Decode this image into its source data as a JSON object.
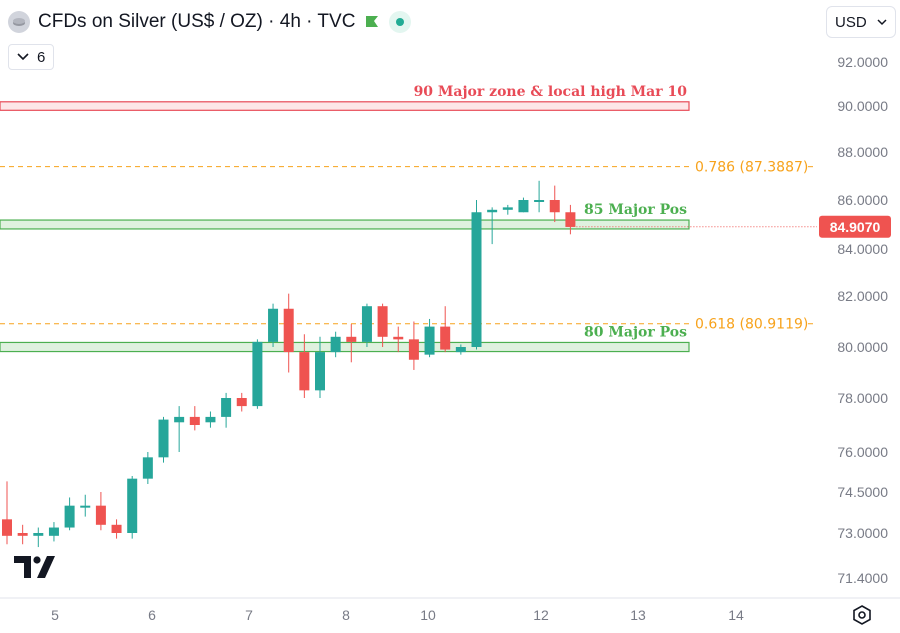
{
  "header": {
    "title": "CFDs on Silver (US$ / OZ) · 4h · TVC",
    "logo_icon": "silver-coin-icon",
    "flag_icon": "green-flag-icon",
    "status_icon": "market-open-dot-icon"
  },
  "indicator": {
    "value": "6",
    "icon": "chevron-down-icon"
  },
  "currency": {
    "label": "USD",
    "icon": "chevron-down-icon"
  },
  "brand": {
    "icon": "tradingview-logo-icon"
  },
  "settings": {
    "icon": "settings-hexagon-icon"
  },
  "colors": {
    "up": "#26a69a",
    "down": "#ef5350",
    "red_zone": "#e84b57",
    "green_zone": "#4caf50",
    "fib": "#f7a21b",
    "axis_text": "#787b86"
  },
  "chart_data": {
    "type": "candlestick",
    "title": "CFDs on Silver (US$ / OZ) · 4h · TVC",
    "y_axis": {
      "ticks": [
        "92.0000",
        "90.0000",
        "88.0000",
        "86.0000",
        "84.0000",
        "82.0000",
        "80.0000",
        "78.0000",
        "76.0000",
        "74.5000",
        "73.0000",
        "71.4000"
      ],
      "ylim": [
        70.9,
        93.4
      ]
    },
    "x_axis": {
      "ticks": [
        "5",
        "6",
        "7",
        "8",
        "10",
        "12",
        "13",
        "14"
      ]
    },
    "last_price": "84.9070",
    "zones": [
      {
        "label": "90 Major zone & local high Mar 10",
        "low": 89.9,
        "high": 90.1,
        "color": "red"
      },
      {
        "label": "85 Major Pos",
        "low": 84.9,
        "high": 85.1,
        "color": "green"
      },
      {
        "label": "80 Major Pos",
        "low": 79.9,
        "high": 80.1,
        "color": "green"
      }
    ],
    "fib_levels": [
      {
        "label": "0.786 (87.3887)",
        "value": 87.3887
      },
      {
        "label": "0.618 (80.9119)",
        "value": 80.9119
      }
    ],
    "candles": [
      {
        "o": 73.5,
        "h": 74.9,
        "l": 72.6,
        "c": 72.9
      },
      {
        "o": 73.0,
        "h": 73.3,
        "l": 72.6,
        "c": 72.9
      },
      {
        "o": 72.9,
        "h": 73.2,
        "l": 72.5,
        "c": 73.0
      },
      {
        "o": 72.9,
        "h": 73.4,
        "l": 72.7,
        "c": 73.2
      },
      {
        "o": 73.2,
        "h": 74.3,
        "l": 73.1,
        "c": 74.0
      },
      {
        "o": 74.0,
        "h": 74.4,
        "l": 73.6,
        "c": 74.0
      },
      {
        "o": 74.0,
        "h": 74.5,
        "l": 73.1,
        "c": 73.3
      },
      {
        "o": 73.3,
        "h": 73.5,
        "l": 72.8,
        "c": 73.0
      },
      {
        "o": 73.0,
        "h": 75.1,
        "l": 72.8,
        "c": 75.0
      },
      {
        "o": 75.0,
        "h": 76.0,
        "l": 74.8,
        "c": 75.8
      },
      {
        "o": 75.8,
        "h": 77.3,
        "l": 75.6,
        "c": 77.2
      },
      {
        "o": 77.1,
        "h": 77.7,
        "l": 76.0,
        "c": 77.3
      },
      {
        "o": 77.3,
        "h": 77.7,
        "l": 76.8,
        "c": 77.0
      },
      {
        "o": 77.1,
        "h": 77.5,
        "l": 76.9,
        "c": 77.3
      },
      {
        "o": 77.3,
        "h": 78.2,
        "l": 76.9,
        "c": 78.0
      },
      {
        "o": 78.0,
        "h": 78.2,
        "l": 77.5,
        "c": 77.7
      },
      {
        "o": 77.7,
        "h": 80.3,
        "l": 77.6,
        "c": 80.2
      },
      {
        "o": 80.2,
        "h": 81.7,
        "l": 80.0,
        "c": 81.5
      },
      {
        "o": 81.5,
        "h": 82.1,
        "l": 79.0,
        "c": 79.8
      },
      {
        "o": 79.8,
        "h": 80.5,
        "l": 78.0,
        "c": 78.3
      },
      {
        "o": 78.3,
        "h": 80.4,
        "l": 78.0,
        "c": 79.8
      },
      {
        "o": 79.8,
        "h": 80.6,
        "l": 79.6,
        "c": 80.4
      },
      {
        "o": 80.4,
        "h": 80.9,
        "l": 79.4,
        "c": 80.2
      },
      {
        "o": 80.2,
        "h": 81.7,
        "l": 80.0,
        "c": 81.6
      },
      {
        "o": 81.6,
        "h": 81.7,
        "l": 80.0,
        "c": 80.4
      },
      {
        "o": 80.4,
        "h": 80.8,
        "l": 79.8,
        "c": 80.3
      },
      {
        "o": 80.3,
        "h": 81.0,
        "l": 79.1,
        "c": 79.5
      },
      {
        "o": 79.7,
        "h": 81.1,
        "l": 79.6,
        "c": 80.8
      },
      {
        "o": 80.8,
        "h": 81.6,
        "l": 79.8,
        "c": 79.9
      },
      {
        "o": 79.8,
        "h": 80.1,
        "l": 79.7,
        "c": 80.0
      },
      {
        "o": 80.0,
        "h": 86.0,
        "l": 79.9,
        "c": 85.5
      },
      {
        "o": 85.5,
        "h": 85.7,
        "l": 84.2,
        "c": 85.6
      },
      {
        "o": 85.6,
        "h": 85.8,
        "l": 85.4,
        "c": 85.7
      },
      {
        "o": 85.5,
        "h": 86.1,
        "l": 85.5,
        "c": 86.0
      },
      {
        "o": 86.0,
        "h": 86.8,
        "l": 85.5,
        "c": 86.0
      },
      {
        "o": 86.0,
        "h": 86.6,
        "l": 85.1,
        "c": 85.5
      },
      {
        "o": 85.5,
        "h": 85.8,
        "l": 84.6,
        "c": 84.9
      }
    ]
  }
}
